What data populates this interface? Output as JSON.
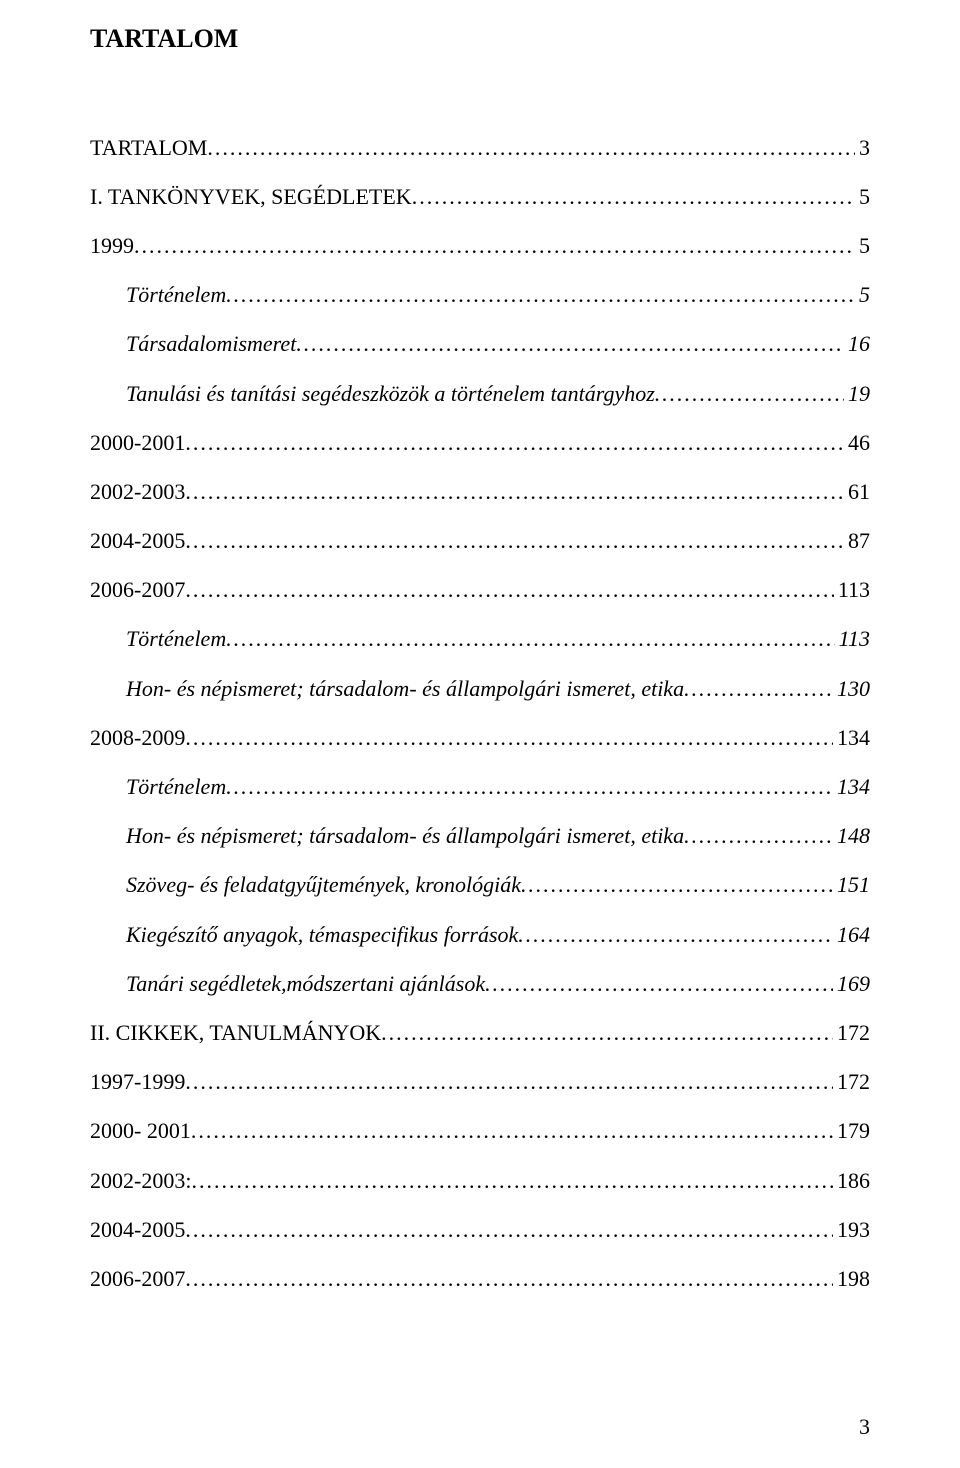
{
  "doc_title": "TARTALOM",
  "page_number": "3",
  "font": {
    "family": "Times New Roman",
    "body_size_pt": 12,
    "title_size_pt": 14
  },
  "colors": {
    "background": "#ffffff",
    "text": "#000000"
  },
  "entries": [
    {
      "label": "TARTALOM",
      "page": "3",
      "level": "lvl-0"
    },
    {
      "label": "I. TANKÖNYVEK, SEGÉDLETEK",
      "page": "5",
      "level": "lvl-0"
    },
    {
      "label": "1999",
      "page": "5",
      "level": "lvl-year"
    },
    {
      "label": "Történelem",
      "page": "5",
      "level": "lvl-2",
      "italic": true
    },
    {
      "label": "Társadalomismeret",
      "page": "16",
      "level": "lvl-2",
      "italic": true
    },
    {
      "label": "Tanulási és tanítási segédeszközök a történelem tantárgyhoz",
      "page": "19",
      "level": "lvl-2",
      "italic": true
    },
    {
      "label": "2000-2001",
      "page": "46",
      "level": "lvl-year"
    },
    {
      "label": "2002-2003",
      "page": "61",
      "level": "lvl-year"
    },
    {
      "label": "2004-2005",
      "page": "87",
      "level": "lvl-year"
    },
    {
      "label": "2006-2007",
      "page": "113",
      "level": "lvl-year"
    },
    {
      "label": "Történelem",
      "page": "113",
      "level": "lvl-2",
      "italic": true
    },
    {
      "label": "Hon- és népismeret; társadalom- és állampolgári ismeret, etika",
      "page": "130",
      "level": "lvl-2",
      "italic": true
    },
    {
      "label": "2008-2009",
      "page": "134",
      "level": "lvl-year"
    },
    {
      "label": "Történelem",
      "page": "134",
      "level": "lvl-2",
      "italic": true
    },
    {
      "label": "Hon- és népismeret; társadalom- és állampolgári ismeret, etika",
      "page": "148",
      "level": "lvl-2",
      "italic": true
    },
    {
      "label": "Szöveg- és feladatgyűjtemények, kronológiák",
      "page": "151",
      "level": "lvl-2",
      "italic": true
    },
    {
      "label": "Kiegészítő anyagok, témaspecifikus források",
      "page": "164",
      "level": "lvl-2",
      "italic": true
    },
    {
      "label": "Tanári segédletek,módszertani ajánlások",
      "page": "169",
      "level": "lvl-2",
      "italic": true
    },
    {
      "label": "II. CIKKEK, TANULMÁNYOK",
      "page": "172",
      "level": "lvl-0"
    },
    {
      "label": "1997-1999",
      "page": "172",
      "level": "lvl-year"
    },
    {
      "label": "2000- 2001",
      "page": "179",
      "level": "lvl-year"
    },
    {
      "label": "2002-2003:",
      "page": "186",
      "level": "lvl-year"
    },
    {
      "label": "2004-2005",
      "page": "193",
      "level": "lvl-year"
    },
    {
      "label": "2006-2007",
      "page": "198",
      "level": "lvl-year"
    }
  ]
}
